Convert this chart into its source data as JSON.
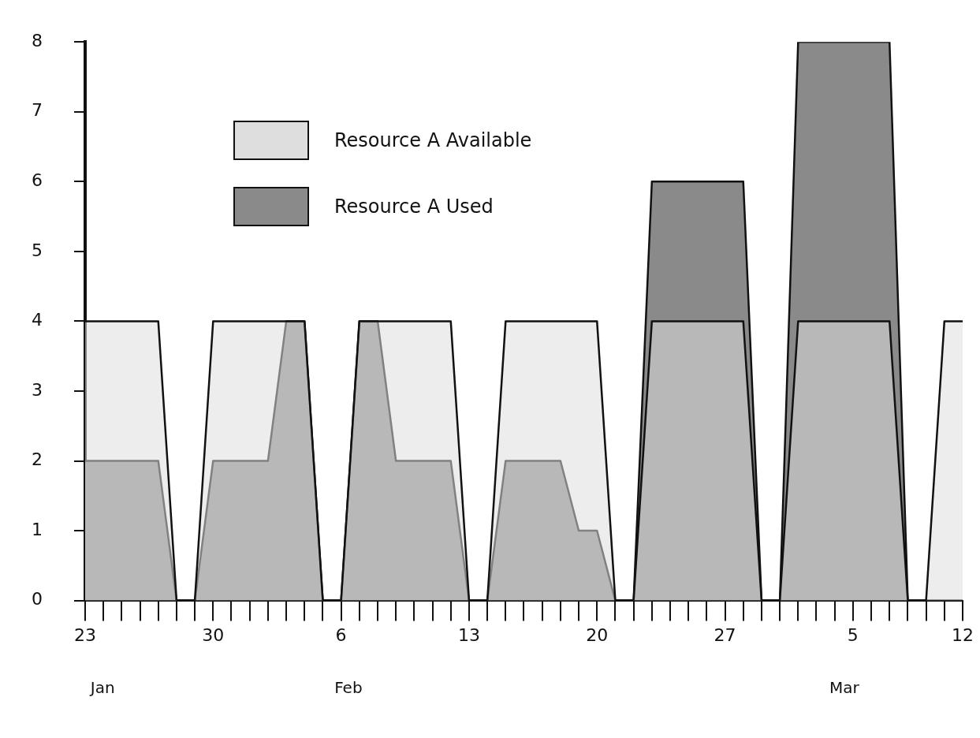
{
  "chart_data": {
    "type": "area",
    "categories": [
      "23",
      null,
      null,
      null,
      null,
      null,
      null,
      "30",
      null,
      null,
      null,
      null,
      null,
      null,
      "6",
      null,
      null,
      null,
      null,
      null,
      null,
      "13",
      null,
      null,
      null,
      null,
      null,
      null,
      "20",
      null,
      null,
      null,
      null,
      null,
      null,
      "27",
      null,
      null,
      null,
      null,
      null,
      null,
      "5",
      null,
      null,
      null,
      null,
      null,
      "12"
    ],
    "series": [
      {
        "name": "Resource A Available",
        "color": "#dedede",
        "values": [
          4,
          4,
          4,
          4,
          4,
          0,
          0,
          4,
          4,
          4,
          4,
          4,
          4,
          0,
          0,
          4,
          4,
          4,
          4,
          4,
          4,
          0,
          0,
          4,
          4,
          4,
          4,
          4,
          4,
          0,
          0,
          4,
          4,
          4,
          4,
          4,
          4,
          0,
          0,
          4,
          4,
          4,
          4,
          4,
          4,
          0,
          0,
          4,
          4
        ]
      },
      {
        "name": "Resource A Used",
        "color": "#8a8a8a",
        "values": [
          2,
          2,
          2,
          2,
          2,
          0,
          0,
          2,
          2,
          2,
          2,
          4,
          4,
          0,
          0,
          4,
          4,
          2,
          2,
          2,
          2,
          0,
          0,
          2,
          2,
          2,
          2,
          1,
          1,
          0,
          0,
          6,
          6,
          6,
          6,
          6,
          6,
          0,
          0,
          8,
          8,
          8,
          8,
          8,
          8,
          0,
          0,
          0,
          0
        ]
      }
    ],
    "ylim": [
      0,
      8
    ],
    "yticks": [
      0,
      1,
      2,
      3,
      4,
      5,
      6,
      7,
      8
    ],
    "legend": "top left",
    "annotations": [
      "Jan",
      "Feb",
      "Mar"
    ]
  }
}
